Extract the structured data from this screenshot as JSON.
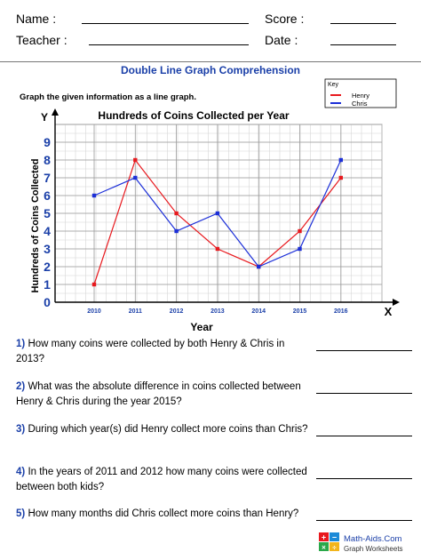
{
  "header": {
    "name_label": "Name :",
    "score_label": "Score :",
    "teacher_label": "Teacher :",
    "date_label": "Date :"
  },
  "worksheet": {
    "title": "Double Line Graph Comprehension",
    "instruction": "Graph the given information as a line graph."
  },
  "chart_data": {
    "type": "line",
    "title": "Hundreds of Coins Collected per Year",
    "xlabel": "Year",
    "ylabel": "Hundreds of Coins Collected",
    "x_axis_letter": "X",
    "y_axis_letter": "Y",
    "categories": [
      "2010",
      "2011",
      "2012",
      "2013",
      "2014",
      "2015",
      "2016"
    ],
    "y_ticks": [
      "0",
      "1",
      "2",
      "3",
      "4",
      "5",
      "6",
      "7",
      "8",
      "9"
    ],
    "ylim": [
      0,
      9
    ],
    "grid": true,
    "legend": {
      "title": "Key",
      "placement": "top-right"
    },
    "series": [
      {
        "name": "Henry",
        "color": "#e8191e",
        "values": [
          1,
          8,
          5,
          3,
          2,
          4,
          7
        ]
      },
      {
        "name": "Chris",
        "color": "#1c2fd8",
        "values": [
          6,
          7,
          4,
          5,
          2,
          3,
          8
        ]
      }
    ]
  },
  "questions": [
    {
      "num": "1)",
      "text": "How many coins were collected by both Henry & Chris in 2013?"
    },
    {
      "num": "2)",
      "text": "What was the absolute difference in coins collected between Henry & Chris during the year 2015?"
    },
    {
      "num": "3)",
      "text": "During which year(s) did Henry collect more coins than Chris?"
    },
    {
      "num": "4)",
      "text": "In the years of 2011 and 2012 how many coins were collected between both kids?"
    },
    {
      "num": "5)",
      "text": "How many months did Chris collect more coins than Henry?"
    }
  ],
  "footer": {
    "brand": "Math-Aids.Com",
    "subtitle": "Graph Worksheets"
  }
}
